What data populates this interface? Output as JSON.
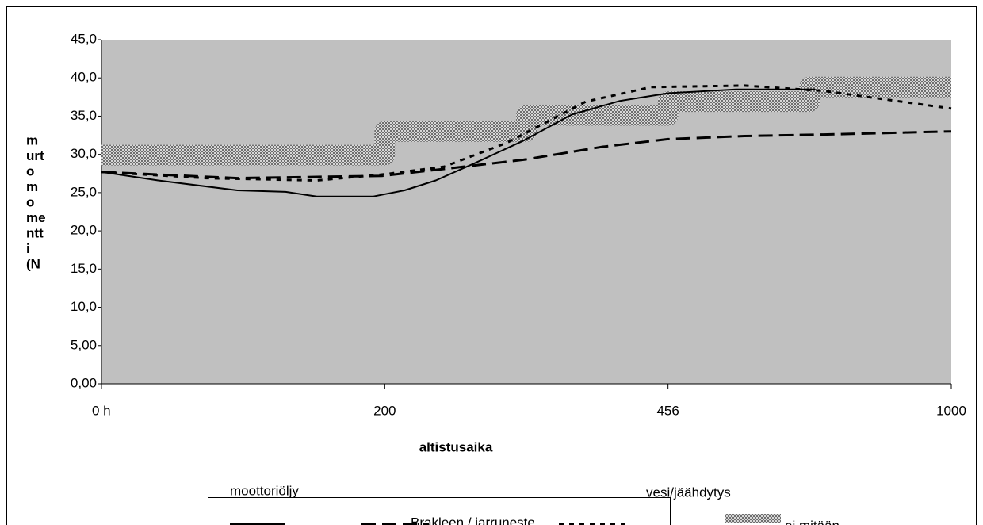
{
  "chart_data": {
    "type": "line",
    "y_label": [
      "m",
      "urt",
      "o",
      "m",
      "o",
      "me",
      "ntt",
      "i",
      "(N"
    ],
    "x_label": "altistusaika",
    "xlim": [
      0,
      3
    ],
    "xticks": [
      {
        "value": 0,
        "label": "0 h"
      },
      {
        "value": 1,
        "label": "200"
      },
      {
        "value": 2,
        "label": "456"
      },
      {
        "value": 3,
        "label": "1000"
      }
    ],
    "ylim": [
      0,
      45
    ],
    "yticks": [
      {
        "value": 0,
        "label": "0,00"
      },
      {
        "value": 5,
        "label": "5,00"
      },
      {
        "value": 10,
        "label": "10,0"
      },
      {
        "value": 15,
        "label": "15,0"
      },
      {
        "value": 20,
        "label": "20,0"
      },
      {
        "value": 25,
        "label": "25,0"
      },
      {
        "value": 30,
        "label": "30,0"
      },
      {
        "value": 35,
        "label": "35,0"
      },
      {
        "value": 40,
        "label": "40,0"
      },
      {
        "value": 45,
        "label": "45,0"
      }
    ],
    "series": [
      {
        "name": "moottoriöljy",
        "color": "#000000",
        "style": "solid",
        "x": [
          0,
          0.2,
          0.48,
          0.65,
          0.76,
          0.96,
          1.07,
          1.18,
          1.32,
          1.49,
          1.66,
          1.83,
          2.0,
          2.24,
          2.52
        ],
        "values": [
          27.7,
          26.6,
          25.3,
          25.1,
          24.5,
          24.5,
          25.3,
          26.6,
          28.9,
          31.8,
          35.2,
          37.0,
          38.0,
          38.5,
          38.5
        ]
      },
      {
        "name": "Brakleen / jarruneste",
        "color": "#000000",
        "style": "dash",
        "x": [
          0,
          0.48,
          0.99,
          1.21,
          1.49,
          1.77,
          2.0,
          2.27,
          2.55,
          3.0
        ],
        "values": [
          27.7,
          26.9,
          27.2,
          28.1,
          29.3,
          31.0,
          32.0,
          32.4,
          32.6,
          33.0
        ]
      },
      {
        "name": "vesi/jäähdytys",
        "color": "#000000",
        "style": "dot",
        "x": [
          0,
          0.37,
          0.76,
          1.0,
          1.21,
          1.43,
          1.71,
          1.94,
          2.27,
          2.55,
          3.0
        ],
        "values": [
          27.7,
          26.9,
          26.6,
          27.4,
          28.4,
          31.5,
          36.9,
          38.8,
          39.0,
          38.3,
          36.0
        ]
      },
      {
        "name": "ei mitään",
        "color": "#8c8c8c",
        "style": "band",
        "x": [
          0,
          1,
          1,
          1.5,
          1.5,
          2,
          2,
          2.5,
          2.5,
          3
        ],
        "values": [
          29.9,
          29.9,
          33.0,
          33.0,
          35.1,
          35.1,
          36.9,
          36.9,
          38.8,
          38.8
        ]
      }
    ]
  }
}
